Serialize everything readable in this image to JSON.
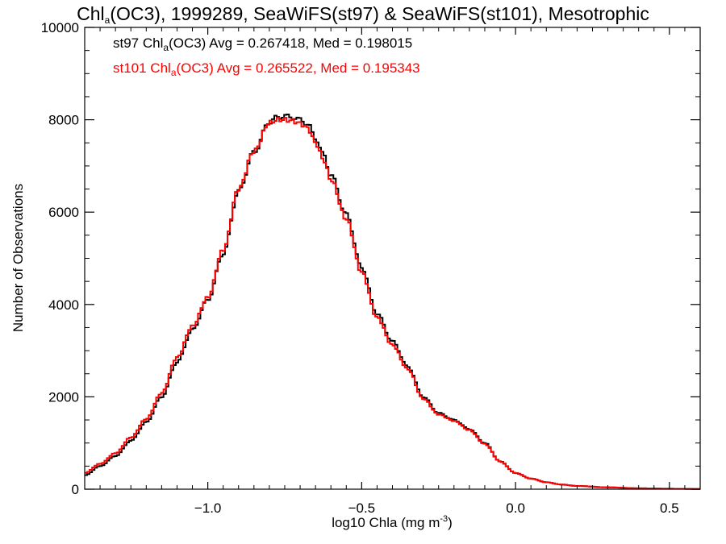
{
  "chart_data": {
    "type": "line",
    "step": true,
    "title": {
      "pre": "Chl",
      "sub": "a",
      "post": "(OC3), 1999289, SeaWiFS(st97) & SeaWiFS(st101), Mesotrophic"
    },
    "xlabel": {
      "pre": "log10 Chla (mg m",
      "sup": "-3",
      "post": ")"
    },
    "ylabel": "Number of Observations",
    "xlim": [
      -1.4,
      0.6
    ],
    "ylim": [
      0,
      10000
    ],
    "xticks": [
      -1.0,
      -0.5,
      0.0,
      0.5
    ],
    "xtick_labels": [
      "−1.0",
      "−0.5",
      "0.0",
      "0.5"
    ],
    "yticks": [
      0,
      2000,
      4000,
      6000,
      8000,
      10000
    ],
    "ytick_labels": [
      "0",
      "2000",
      "4000",
      "6000",
      "8000",
      "10000"
    ],
    "grid": false,
    "legend_position": "top-left",
    "series": [
      {
        "name": "st97",
        "color": "#000000",
        "legend": {
          "pre": "st97 Chl",
          "sub": "a",
          "post": "(OC3) Avg = 0.267418, Med = 0.198015"
        },
        "x": [
          -1.4,
          -1.35,
          -1.3,
          -1.25,
          -1.2,
          -1.15,
          -1.1,
          -1.05,
          -1.0,
          -0.95,
          -0.9,
          -0.85,
          -0.8,
          -0.775,
          -0.75,
          -0.725,
          -0.7,
          -0.675,
          -0.65,
          -0.625,
          -0.6,
          -0.55,
          -0.5,
          -0.45,
          -0.4,
          -0.35,
          -0.3,
          -0.25,
          -0.2,
          -0.15,
          -0.1,
          -0.05,
          0.0,
          0.05,
          0.1,
          0.15,
          0.2,
          0.3,
          0.4,
          0.5,
          0.6
        ],
        "values": [
          300,
          500,
          720,
          1050,
          1450,
          2000,
          2750,
          3450,
          4100,
          5100,
          6450,
          7300,
          7950,
          8050,
          8080,
          8050,
          8000,
          7900,
          7600,
          7250,
          6800,
          5950,
          4800,
          3800,
          3200,
          2650,
          2000,
          1650,
          1500,
          1300,
          1000,
          600,
          350,
          230,
          150,
          100,
          70,
          40,
          20,
          10,
          5
        ]
      },
      {
        "name": "st101",
        "color": "#ff0000",
        "legend": {
          "pre": "st101 Chl",
          "sub": "a",
          "post": "(OC3) Avg = 0.265522, Med = 0.195343"
        },
        "x": [
          -1.4,
          -1.35,
          -1.3,
          -1.25,
          -1.2,
          -1.15,
          -1.1,
          -1.05,
          -1.0,
          -0.95,
          -0.9,
          -0.85,
          -0.8,
          -0.775,
          -0.75,
          -0.725,
          -0.7,
          -0.675,
          -0.65,
          -0.625,
          -0.6,
          -0.55,
          -0.5,
          -0.45,
          -0.4,
          -0.35,
          -0.3,
          -0.25,
          -0.2,
          -0.15,
          -0.1,
          -0.05,
          0.0,
          0.05,
          0.1,
          0.15,
          0.2,
          0.3,
          0.4,
          0.5,
          0.6
        ],
        "values": [
          350,
          550,
          780,
          1120,
          1520,
          2080,
          2850,
          3530,
          4150,
          5180,
          6500,
          7320,
          7930,
          8000,
          8000,
          7980,
          7920,
          7820,
          7500,
          7150,
          6700,
          5850,
          4700,
          3720,
          3120,
          2600,
          1960,
          1620,
          1480,
          1280,
          980,
          600,
          350,
          230,
          150,
          100,
          70,
          40,
          20,
          10,
          5
        ]
      }
    ]
  }
}
